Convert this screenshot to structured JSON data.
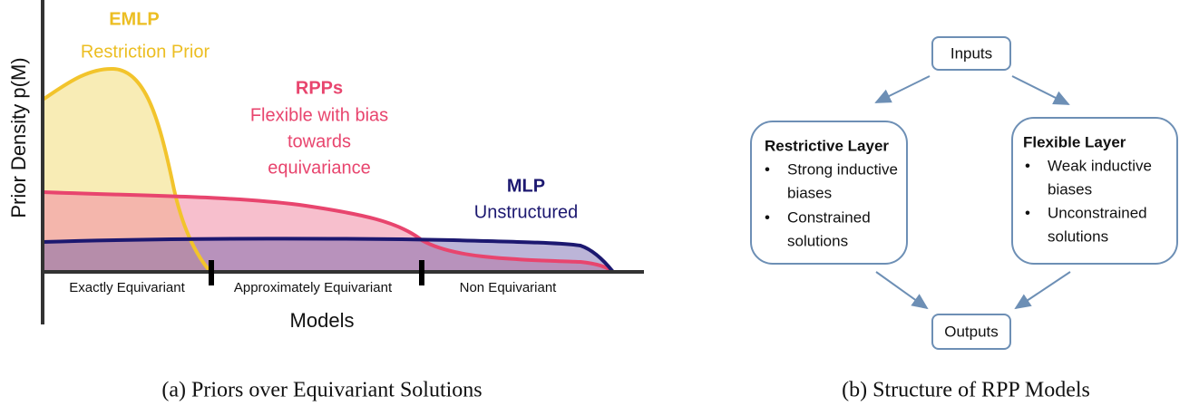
{
  "left": {
    "y_label": "Prior Density p(M)",
    "x_label": "Models",
    "regions": [
      "Exactly Equivariant",
      "Approximately Equivariant",
      "Non Equivariant"
    ],
    "annotations": [
      {
        "title": "EMLP",
        "lines": [
          "Restriction Prior"
        ]
      },
      {
        "title": "RPPs",
        "lines": [
          "Flexible with bias",
          "towards",
          "equivariance"
        ]
      },
      {
        "title": "MLP",
        "lines": [
          "Unstructured"
        ]
      }
    ],
    "caption": "(a) Priors over Equivariant Solutions"
  },
  "right": {
    "nodes": [
      {
        "label": "Inputs"
      },
      {
        "label": "Restrictive Layer",
        "items": [
          [
            "Strong inductive",
            "biases"
          ],
          [
            "Constrained",
            "solutions"
          ]
        ]
      },
      {
        "label": "Flexible Layer",
        "items": [
          [
            "Weak inductive",
            "biases"
          ],
          [
            "Unconstrained",
            "solutions"
          ]
        ]
      },
      {
        "label": "Outputs"
      }
    ],
    "caption": "(b) Structure of RPP Models"
  }
}
